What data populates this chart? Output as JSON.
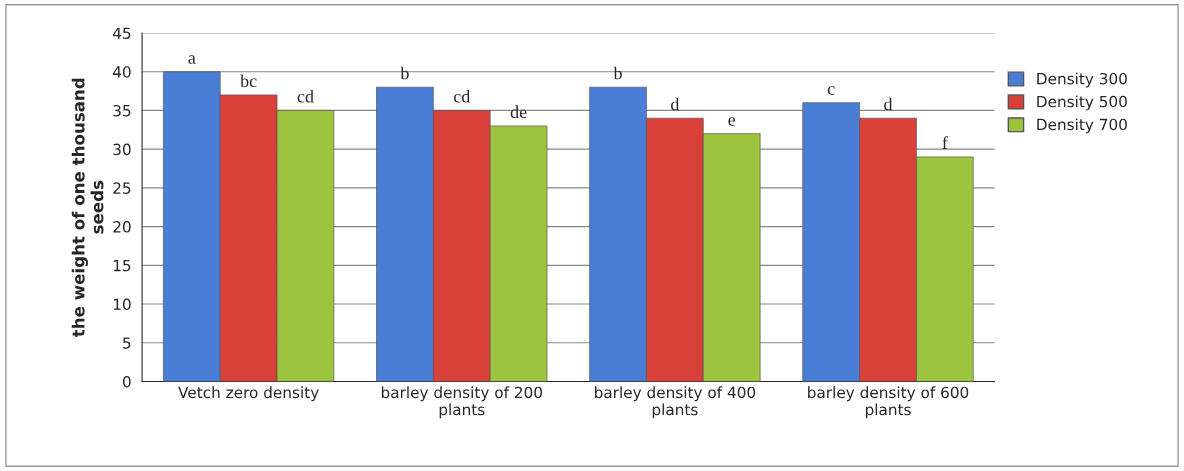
{
  "chart_data": {
    "type": "bar",
    "ylabel": "the weight of one thousand seeds",
    "categories": [
      "Vetch zero density",
      "barley density of 200 plants",
      "barley density of 400 plants",
      "barley density of 600 plants"
    ],
    "series": [
      {
        "name": "Density 300",
        "color": "#4a7ed6",
        "values": [
          40,
          38,
          38,
          36
        ],
        "value_labels": [
          "a",
          "b",
          "b",
          "c"
        ]
      },
      {
        "name": "Density 500",
        "color": "#d9403a",
        "values": [
          37,
          35,
          34,
          34
        ],
        "value_labels": [
          "bc",
          "cd",
          "d",
          "d"
        ]
      },
      {
        "name": "Density 700",
        "color": "#9cc43e",
        "values": [
          35,
          33,
          32,
          29
        ],
        "value_labels": [
          "cd",
          "de",
          "e",
          "f"
        ]
      }
    ],
    "ylim": [
      0,
      45
    ],
    "yticks": [
      0,
      5,
      10,
      15,
      20,
      25,
      30,
      35,
      40,
      45
    ],
    "grid": "y",
    "legend": "right"
  }
}
